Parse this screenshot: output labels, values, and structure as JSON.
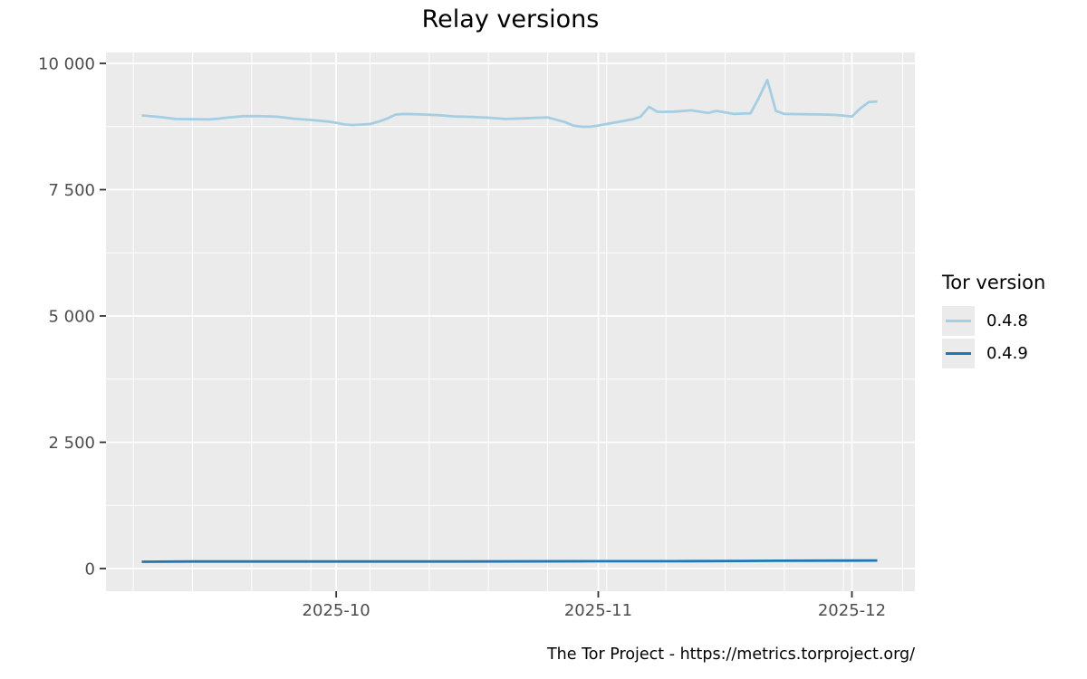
{
  "title": "Relay versions",
  "footer": "The Tor Project - https://metrics.torproject.org/",
  "legend": {
    "title": "Tor version",
    "items": [
      {
        "label": "0.4.8",
        "color": "#A6CEE3"
      },
      {
        "label": "0.4.9",
        "color": "#1F78B4"
      }
    ]
  },
  "colors": {
    "panel_bg": "#EBEBEB",
    "grid": "#FFFFFF",
    "axis_text": "#4D4D4D",
    "tick_mark": "#333333"
  },
  "chart_data": {
    "type": "line",
    "title": "Relay versions",
    "xlabel": "",
    "ylabel": "",
    "legend_position": "right",
    "grid": "on",
    "x_axis": {
      "start_date": "2025-09-08",
      "end_date": "2025-12-04",
      "major_ticks": [
        {
          "date": "2025-10-01",
          "label": "2025-10"
        },
        {
          "date": "2025-11-01",
          "label": "2025-11"
        },
        {
          "date": "2025-12-01",
          "label": "2025-12"
        }
      ],
      "minor_gridlines": [
        "2025-09-07",
        "2025-09-14",
        "2025-09-21",
        "2025-09-28",
        "2025-10-05",
        "2025-10-12",
        "2025-10-19",
        "2025-10-26",
        "2025-11-02",
        "2025-11-09",
        "2025-11-16",
        "2025-11-23",
        "2025-11-30",
        "2025-12-07"
      ]
    },
    "y_axis": {
      "min": 0,
      "max": 10000,
      "ticks": [
        {
          "value": 0,
          "label": "0"
        },
        {
          "value": 2500,
          "label": "2 500"
        },
        {
          "value": 5000,
          "label": "5 000"
        },
        {
          "value": 7500,
          "label": "7 500"
        },
        {
          "value": 10000,
          "label": "10 000"
        }
      ],
      "minor_gridlines": [
        1250,
        3750,
        6250,
        8750
      ]
    },
    "series": [
      {
        "name": "0.4.8",
        "color": "#A6CEE3",
        "points": [
          [
            "2025-09-08",
            8970
          ],
          [
            "2025-09-10",
            8940
          ],
          [
            "2025-09-12",
            8900
          ],
          [
            "2025-09-14",
            8895
          ],
          [
            "2025-09-16",
            8890
          ],
          [
            "2025-09-17",
            8905
          ],
          [
            "2025-09-18",
            8925
          ],
          [
            "2025-09-20",
            8955
          ],
          [
            "2025-09-22",
            8955
          ],
          [
            "2025-09-24",
            8945
          ],
          [
            "2025-09-26",
            8905
          ],
          [
            "2025-09-28",
            8880
          ],
          [
            "2025-09-30",
            8850
          ],
          [
            "2025-10-01",
            8825
          ],
          [
            "2025-10-02",
            8790
          ],
          [
            "2025-10-03",
            8780
          ],
          [
            "2025-10-05",
            8800
          ],
          [
            "2025-10-06",
            8845
          ],
          [
            "2025-10-07",
            8905
          ],
          [
            "2025-10-08",
            8985
          ],
          [
            "2025-10-09",
            9000
          ],
          [
            "2025-10-11",
            8990
          ],
          [
            "2025-10-13",
            8975
          ],
          [
            "2025-10-15",
            8950
          ],
          [
            "2025-10-17",
            8940
          ],
          [
            "2025-10-19",
            8925
          ],
          [
            "2025-10-21",
            8900
          ],
          [
            "2025-10-23",
            8910
          ],
          [
            "2025-10-25",
            8925
          ],
          [
            "2025-10-26",
            8930
          ],
          [
            "2025-10-28",
            8840
          ],
          [
            "2025-10-29",
            8770
          ],
          [
            "2025-10-30",
            8745
          ],
          [
            "2025-10-31",
            8745
          ],
          [
            "2025-11-01",
            8770
          ],
          [
            "2025-11-03",
            8830
          ],
          [
            "2025-11-05",
            8890
          ],
          [
            "2025-11-06",
            8945
          ],
          [
            "2025-11-07",
            9140
          ],
          [
            "2025-11-08",
            9040
          ],
          [
            "2025-11-10",
            9045
          ],
          [
            "2025-11-12",
            9070
          ],
          [
            "2025-11-14",
            9020
          ],
          [
            "2025-11-15",
            9060
          ],
          [
            "2025-11-17",
            9000
          ],
          [
            "2025-11-19",
            9010
          ],
          [
            "2025-11-20",
            9320
          ],
          [
            "2025-11-21",
            9670
          ],
          [
            "2025-11-22",
            9060
          ],
          [
            "2025-11-23",
            9000
          ],
          [
            "2025-11-25",
            8995
          ],
          [
            "2025-11-27",
            8990
          ],
          [
            "2025-11-29",
            8980
          ],
          [
            "2025-12-01",
            8950
          ],
          [
            "2025-12-02",
            9110
          ],
          [
            "2025-12-03",
            9235
          ],
          [
            "2025-12-04",
            9245
          ]
        ]
      },
      {
        "name": "0.4.9",
        "color": "#1F78B4",
        "points": [
          [
            "2025-09-08",
            135
          ],
          [
            "2025-09-14",
            140
          ],
          [
            "2025-09-21",
            140
          ],
          [
            "2025-10-01",
            140
          ],
          [
            "2025-10-15",
            140
          ],
          [
            "2025-11-01",
            145
          ],
          [
            "2025-11-10",
            145
          ],
          [
            "2025-11-18",
            150
          ],
          [
            "2025-11-22",
            155
          ],
          [
            "2025-12-01",
            158
          ],
          [
            "2025-12-04",
            160
          ]
        ]
      }
    ]
  }
}
